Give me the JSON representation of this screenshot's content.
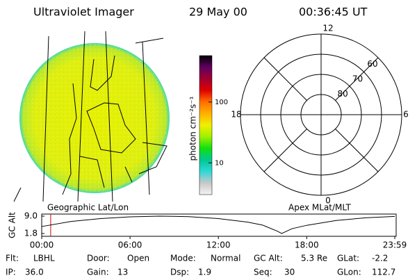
{
  "header": {
    "title": "Ultraviolet Imager",
    "date": "29 May 00",
    "time": "00:36:45 UT"
  },
  "image_panel": {
    "label": "Geographic Lat/Lon"
  },
  "colorbar": {
    "label": "photon cm⁻²s⁻¹",
    "scale": "log",
    "clim": [
      3,
      580
    ],
    "ticks": [
      100,
      10
    ],
    "colors": [
      "#f4f4f4",
      "#c8c8c8",
      "#30d8d8",
      "#00c890",
      "#10e010",
      "#a0f000",
      "#f0f000",
      "#ffb000",
      "#ff7000",
      "#e00000",
      "#a00030",
      "#600060",
      "#000000"
    ]
  },
  "polar": {
    "label": "Apex MLat/MLT",
    "latlim": [
      90,
      50
    ],
    "latitudes": [
      80,
      70,
      60
    ],
    "hours": [
      12,
      6,
      0,
      18
    ]
  },
  "chart_data": {
    "type": "line",
    "ylabel": "GC Alt",
    "x": [
      0,
      2,
      4,
      6,
      8,
      10,
      12,
      14,
      15,
      16,
      16.3,
      17,
      18,
      20,
      22,
      23.98
    ],
    "series": [
      {
        "name": "GC Alt",
        "color": "#000000",
        "values": [
          4.7,
          6.8,
          8.0,
          8.7,
          9.0,
          8.8,
          8.0,
          6.5,
          5.3,
          2.8,
          1.8,
          3.8,
          5.2,
          7.2,
          8.3,
          8.9
        ]
      }
    ],
    "marker_x": 0.61,
    "marker_color": "#d00000",
    "xlim": [
      0,
      23.98
    ],
    "ylim": [
      1.8,
      9.0
    ],
    "xticks": [
      {
        "value": 0,
        "label": "00:00"
      },
      {
        "value": 6,
        "label": "06:00"
      },
      {
        "value": 12,
        "label": "12:00"
      },
      {
        "value": 18,
        "label": "18:00"
      },
      {
        "value": 23.98,
        "label": "23:59"
      }
    ],
    "yticks": [
      {
        "value": 9,
        "label": "9.0"
      },
      1.8
    ]
  },
  "info": [
    [
      {
        "label": "Flt:",
        "value": "LBHL"
      },
      {
        "label": "Door:",
        "value": "Open"
      },
      {
        "label": "Mode:",
        "value": "Normal"
      },
      {
        "label": "GC Alt:",
        "value": "5.3 Re"
      },
      {
        "label": "GLat:",
        "value": "-2.2"
      }
    ],
    [
      {
        "label": "IP:",
        "value": "36.0"
      },
      {
        "label": "Gain:",
        "value": "13"
      },
      {
        "label": "Dsp:",
        "value": "1.9"
      },
      {
        "label": "Seq:",
        "value": "30"
      },
      {
        "label": "GLon:",
        "value": "112.7"
      }
    ]
  ]
}
